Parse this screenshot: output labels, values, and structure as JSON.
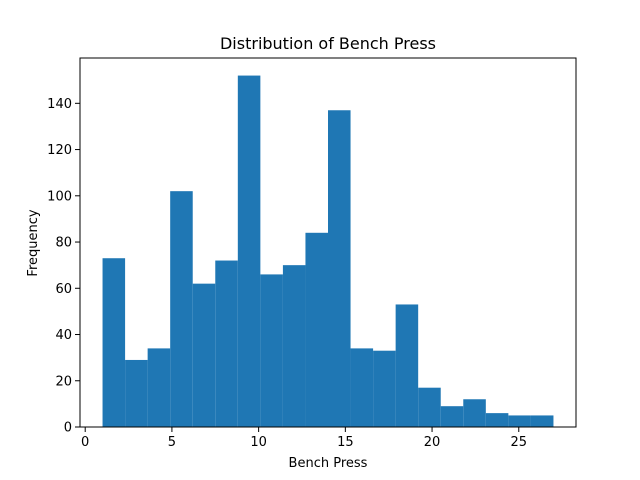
{
  "chart_data": {
    "type": "bar",
    "title": "Distribution of Bench Press",
    "xlabel": "Bench Press",
    "ylabel": "Frequency",
    "bar_color": "#1f77b4",
    "bins": [
      {
        "start": 1.0,
        "end": 2.3,
        "count": 73
      },
      {
        "start": 2.3,
        "end": 3.6,
        "count": 29
      },
      {
        "start": 3.6,
        "end": 4.9,
        "count": 34
      },
      {
        "start": 4.9,
        "end": 6.2,
        "count": 102
      },
      {
        "start": 6.2,
        "end": 7.5,
        "count": 62
      },
      {
        "start": 7.5,
        "end": 8.8,
        "count": 72
      },
      {
        "start": 8.8,
        "end": 10.1,
        "count": 152
      },
      {
        "start": 10.1,
        "end": 11.4,
        "count": 66
      },
      {
        "start": 11.4,
        "end": 12.7,
        "count": 70
      },
      {
        "start": 12.7,
        "end": 14.0,
        "count": 84
      },
      {
        "start": 14.0,
        "end": 15.3,
        "count": 137
      },
      {
        "start": 15.3,
        "end": 16.6,
        "count": 34
      },
      {
        "start": 16.6,
        "end": 17.9,
        "count": 33
      },
      {
        "start": 17.9,
        "end": 19.2,
        "count": 53
      },
      {
        "start": 19.2,
        "end": 20.5,
        "count": 17
      },
      {
        "start": 20.5,
        "end": 21.8,
        "count": 9
      },
      {
        "start": 21.8,
        "end": 23.1,
        "count": 12
      },
      {
        "start": 23.1,
        "end": 24.4,
        "count": 6
      },
      {
        "start": 24.4,
        "end": 25.7,
        "count": 5
      },
      {
        "start": 25.7,
        "end": 27.0,
        "count": 5
      }
    ],
    "xlim": [
      -0.3,
      28.3
    ],
    "ylim": [
      0,
      159.6
    ],
    "xticks": [
      0,
      5,
      10,
      15,
      20,
      25
    ],
    "yticks": [
      0,
      20,
      40,
      60,
      80,
      100,
      120,
      140
    ],
    "grid": false,
    "legend": "none"
  }
}
